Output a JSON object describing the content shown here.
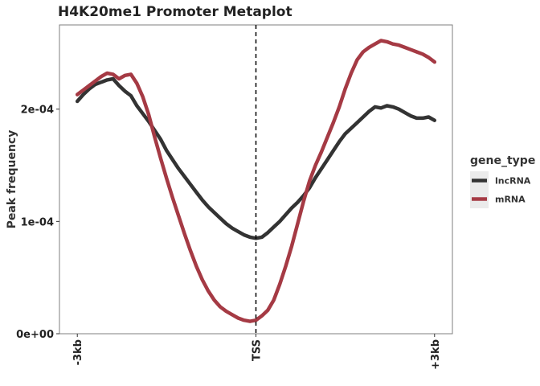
{
  "chart_data": {
    "type": "line",
    "title": "H4K20me1 Promoter Metaplot",
    "xlabel": "",
    "ylabel": "Peak frequency",
    "x_ticks": [
      {
        "value": -3000,
        "label": "-3kb"
      },
      {
        "value": 0,
        "label": "TSS"
      },
      {
        "value": 3000,
        "label": "+3kb"
      }
    ],
    "xlim": [
      -3300,
      3300
    ],
    "y_ticks": [
      {
        "value": 0,
        "label": "0e+00"
      },
      {
        "value": 0.0001,
        "label": "1e-04"
      },
      {
        "value": 0.0002,
        "label": "2e-04"
      }
    ],
    "ylim": [
      0,
      0.000275
    ],
    "vline": {
      "x": 0,
      "style": "dashed"
    },
    "grid": false,
    "legend": {
      "title": "gene_type",
      "position": "right"
    },
    "series": [
      {
        "name": "lncRNA",
        "color": "#333333",
        "x": [
          -3000,
          -2900,
          -2800,
          -2700,
          -2600,
          -2500,
          -2400,
          -2300,
          -2200,
          -2100,
          -2000,
          -1900,
          -1800,
          -1700,
          -1600,
          -1500,
          -1400,
          -1300,
          -1200,
          -1100,
          -1000,
          -900,
          -800,
          -700,
          -600,
          -500,
          -400,
          -300,
          -200,
          -100,
          0,
          100,
          200,
          300,
          400,
          500,
          600,
          700,
          800,
          900,
          1000,
          1100,
          1200,
          1300,
          1400,
          1500,
          1600,
          1700,
          1800,
          1900,
          2000,
          2100,
          2200,
          2300,
          2400,
          2500,
          2600,
          2700,
          2800,
          2900,
          3000
        ],
        "values": [
          0.000207,
          0.000213,
          0.000218,
          0.000222,
          0.000224,
          0.000226,
          0.000227,
          0.000221,
          0.000216,
          0.000212,
          0.000203,
          0.000196,
          0.000189,
          0.000181,
          0.000173,
          0.000163,
          0.000155,
          0.000147,
          0.00014,
          0.000133,
          0.000126,
          0.000119,
          0.000113,
          0.000108,
          0.000103,
          9.8e-05,
          9.4e-05,
          9.1e-05,
          8.8e-05,
          8.6e-05,
          8.5e-05,
          8.6e-05,
          9e-05,
          9.5e-05,
          0.0001,
          0.000106,
          0.000112,
          0.000117,
          0.000123,
          0.00013,
          0.000139,
          0.000147,
          0.000155,
          0.000163,
          0.000171,
          0.000178,
          0.000183,
          0.000188,
          0.000193,
          0.000198,
          0.000202,
          0.000201,
          0.000203,
          0.000202,
          0.0002,
          0.000197,
          0.000194,
          0.000192,
          0.000192,
          0.000193,
          0.00019
        ]
      },
      {
        "name": "mRNA",
        "color": "#a53a44",
        "x": [
          -3000,
          -2900,
          -2800,
          -2700,
          -2600,
          -2500,
          -2400,
          -2300,
          -2200,
          -2100,
          -2000,
          -1900,
          -1800,
          -1700,
          -1600,
          -1500,
          -1400,
          -1300,
          -1200,
          -1100,
          -1000,
          -900,
          -800,
          -700,
          -600,
          -500,
          -400,
          -300,
          -200,
          -100,
          0,
          100,
          200,
          300,
          400,
          500,
          600,
          700,
          800,
          900,
          1000,
          1100,
          1200,
          1300,
          1400,
          1500,
          1600,
          1700,
          1800,
          1900,
          2000,
          2100,
          2200,
          2300,
          2400,
          2500,
          2600,
          2700,
          2800,
          2900,
          3000
        ],
        "values": [
          0.000213,
          0.000217,
          0.000221,
          0.000225,
          0.000229,
          0.000232,
          0.000231,
          0.000227,
          0.00023,
          0.000231,
          0.000223,
          0.000211,
          0.000195,
          0.000175,
          0.000156,
          0.000138,
          0.000121,
          0.000105,
          8.9e-05,
          7.4e-05,
          6e-05,
          4.8e-05,
          3.8e-05,
          3e-05,
          2.4e-05,
          2e-05,
          1.7e-05,
          1.4e-05,
          1.2e-05,
          1.1e-05,
          1.2e-05,
          1.6e-05,
          2.1e-05,
          3e-05,
          4.4e-05,
          6e-05,
          7.8e-05,
          9.8e-05,
          0.000118,
          0.000136,
          0.00015,
          0.000162,
          0.000175,
          0.000188,
          0.000202,
          0.000218,
          0.000232,
          0.000244,
          0.000251,
          0.000255,
          0.000258,
          0.000261,
          0.00026,
          0.000258,
          0.000257,
          0.000255,
          0.000253,
          0.000251,
          0.000249,
          0.000246,
          0.000242
        ]
      }
    ]
  }
}
